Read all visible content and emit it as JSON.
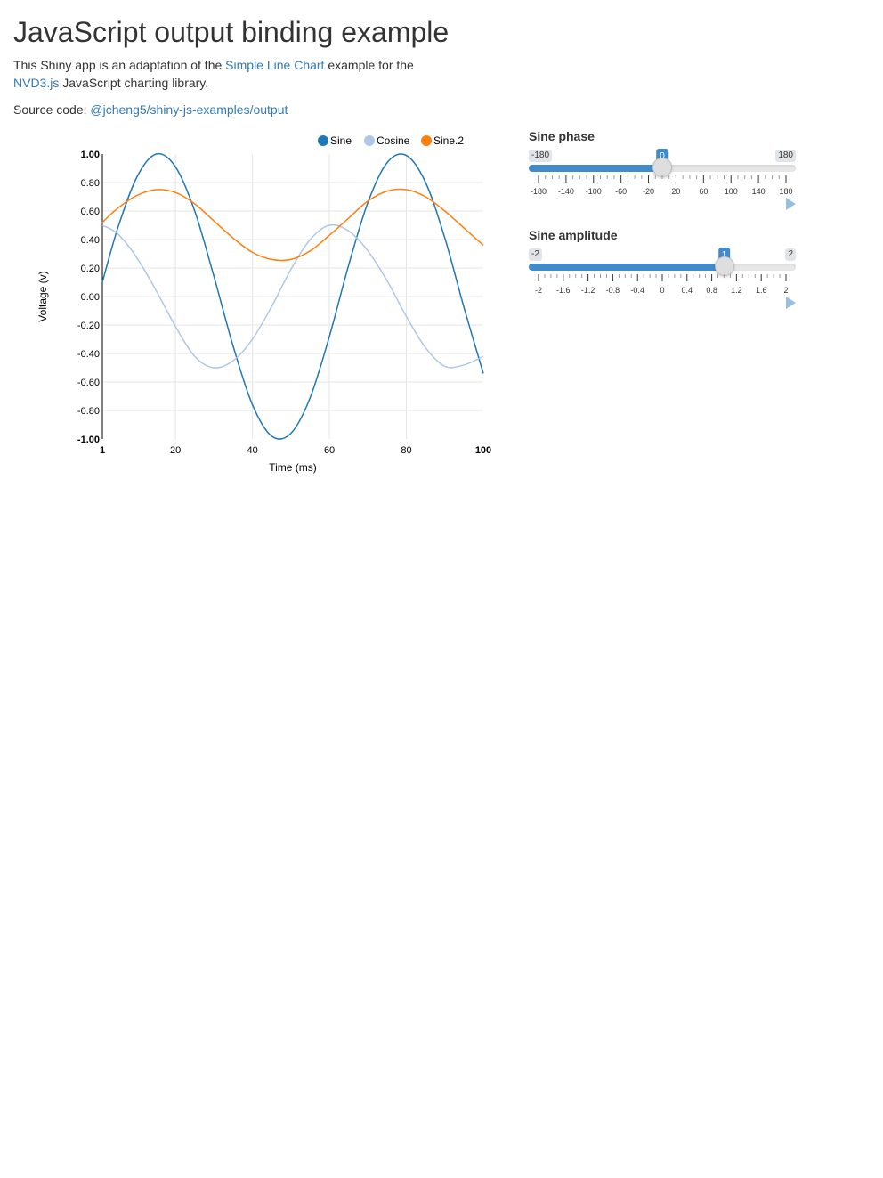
{
  "page": {
    "title": "JavaScript output binding example",
    "intro_before": "This Shiny app is an adaptation of the ",
    "intro_link1": "Simple Line Chart",
    "intro_middle": " example for the ",
    "intro_link2": "NVD3.js",
    "intro_after": " JavaScript charting library.",
    "source_label": "Source code: ",
    "source_link": "@jcheng5/shiny-js-examples/output"
  },
  "sliders": [
    {
      "label": "Sine phase",
      "min": -180,
      "max": 180,
      "value": 0,
      "step": 20,
      "min_label": "-180",
      "max_label": "180",
      "value_label": "0",
      "grid_labels": [
        "-180",
        "-140",
        "-100",
        "-60",
        "-20",
        "20",
        "60",
        "100",
        "140",
        "180"
      ]
    },
    {
      "label": "Sine amplitude",
      "min": -2,
      "max": 2,
      "value": 1,
      "step": 0.4,
      "min_label": "-2",
      "max_label": "2",
      "value_label": "1",
      "grid_labels": [
        "-2",
        "-1.6",
        "-1.2",
        "-0.8",
        "-0.4",
        "0",
        "0.4",
        "0.8",
        "1.2",
        "1.6",
        "2"
      ]
    }
  ],
  "icons": {
    "play": "play-icon"
  },
  "chart_data": {
    "type": "line",
    "title": "",
    "xlabel": "Time (ms)",
    "ylabel": "Voltage (v)",
    "xlim": [
      1,
      100
    ],
    "ylim": [
      -1,
      1
    ],
    "x_ticks": [
      "1",
      "20",
      "40",
      "60",
      "80",
      "100"
    ],
    "y_ticks": [
      "1.00",
      "0.80",
      "0.60",
      "0.40",
      "0.20",
      "0.00",
      "-0.20",
      "-0.40",
      "-0.60",
      "-0.80",
      "-1.00"
    ],
    "grid": true,
    "legend_position": "top-right",
    "x": [
      1,
      5,
      10,
      15,
      20,
      25,
      30,
      35,
      40,
      45,
      50,
      55,
      60,
      65,
      70,
      75,
      80,
      85,
      90,
      95,
      100
    ],
    "series": [
      {
        "name": "Sine",
        "color": "#1f77b4",
        "values": [
          0.1,
          0.48,
          0.84,
          1.0,
          0.91,
          0.6,
          0.14,
          -0.35,
          -0.76,
          -0.98,
          -0.96,
          -0.71,
          -0.28,
          0.22,
          0.66,
          0.94,
          0.99,
          0.8,
          0.41,
          -0.08,
          -0.54
        ]
      },
      {
        "name": "Cosine",
        "color": "#aec7e8",
        "values": [
          0.5,
          0.44,
          0.27,
          0.04,
          -0.21,
          -0.42,
          -0.5,
          -0.45,
          -0.3,
          -0.07,
          0.19,
          0.4,
          0.5,
          0.46,
          0.32,
          0.11,
          -0.14,
          -0.36,
          -0.49,
          -0.48,
          -0.42
        ]
      },
      {
        "name": "Sine.2",
        "color": "#ff7f0e",
        "values": [
          0.52,
          0.62,
          0.71,
          0.75,
          0.73,
          0.65,
          0.53,
          0.41,
          0.31,
          0.26,
          0.26,
          0.32,
          0.43,
          0.55,
          0.67,
          0.74,
          0.75,
          0.7,
          0.6,
          0.48,
          0.36
        ]
      }
    ]
  }
}
